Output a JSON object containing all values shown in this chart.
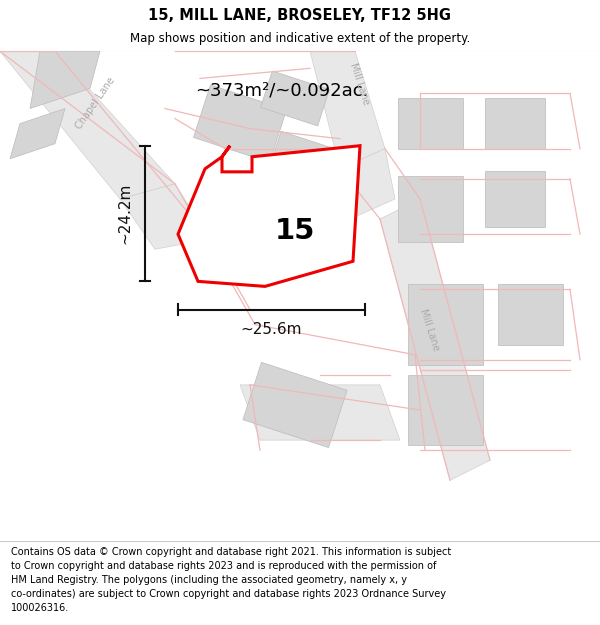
{
  "title": "15, MILL LANE, BROSELEY, TF12 5HG",
  "subtitle": "Map shows position and indicative extent of the property.",
  "footer_lines": [
    "Contains OS data © Crown copyright and database right 2021. This information is subject",
    "to Crown copyright and database rights 2023 and is reproduced with the permission of",
    "HM Land Registry. The polygons (including the associated geometry, namely x, y",
    "co-ordinates) are subject to Crown copyright and database rights 2023 Ordnance Survey",
    "100026316."
  ],
  "area_label": "~373m²/~0.092ac.",
  "width_label": "~25.6m",
  "height_label": "~24.2m",
  "plot_number": "15",
  "title_fontsize": 10.5,
  "subtitle_fontsize": 8.5,
  "footer_fontsize": 7.0,
  "map_bg": "#f7f7f7",
  "road_fill": "#e0e0e0",
  "road_edge": "#cccccc",
  "bldg_fill": "#d5d5d5",
  "bldg_edge": "#bbbbbb",
  "plot_fill": "#ffffff",
  "plot_edge": "#ee0000",
  "road_line": "#f0b8b8",
  "road_label_color": "#aaaaaa",
  "dim_color": "#111111",
  "chapel_lane_label": "Chapel Lane",
  "mill_lane_label1": "Mill Lane",
  "mill_lane_label2": "Mill Lane",
  "chapel_rotation": 55,
  "mill1_rotation": -72,
  "mill2_rotation": -72
}
